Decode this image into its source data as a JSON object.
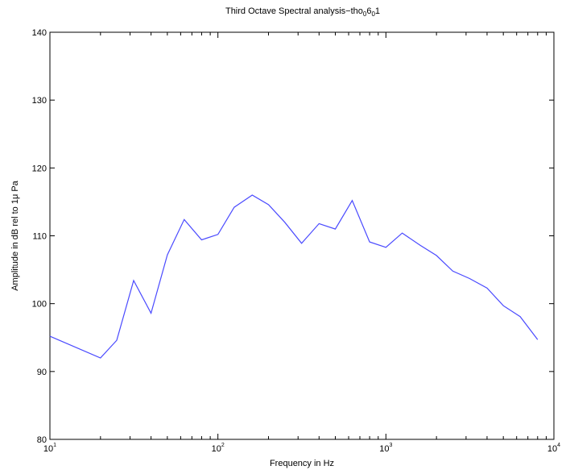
{
  "chart_data": {
    "type": "line",
    "title_parts": [
      {
        "text": "Third Octave Spectral analysis−tho",
        "sub": false
      },
      {
        "text": "0",
        "sub": true
      },
      {
        "text": "6",
        "sub": false
      },
      {
        "text": "0",
        "sub": true
      },
      {
        "text": "1",
        "sub": false
      }
    ],
    "xlabel": "Frequency in Hz",
    "ylabel": "Amplitude in dB rel to 1μ Pa",
    "xscale": "log",
    "xlim": [
      10,
      10000
    ],
    "ylim": [
      80,
      140
    ],
    "yticks": [
      80,
      90,
      100,
      110,
      120,
      130,
      140
    ],
    "xticks": [
      {
        "value": 10,
        "base": "10",
        "exp": "1"
      },
      {
        "value": 100,
        "base": "10",
        "exp": "2"
      },
      {
        "value": 1000,
        "base": "10",
        "exp": "3"
      },
      {
        "value": 10000,
        "base": "10",
        "exp": "4"
      }
    ],
    "grid": false,
    "line_color": "#4a4aff",
    "series": [
      {
        "x": [
          10,
          20,
          25,
          31.5,
          40,
          50,
          63,
          80,
          100,
          125,
          160,
          200,
          250,
          315,
          400,
          500,
          630,
          800,
          1000,
          1250,
          1600,
          2000,
          2500,
          3150,
          4000,
          5000,
          6300,
          8000
        ],
        "y": [
          95.2,
          92.0,
          94.6,
          103.4,
          98.6,
          107.2,
          112.4,
          109.4,
          110.2,
          114.2,
          116.0,
          114.6,
          112.0,
          108.9,
          111.8,
          111.0,
          115.2,
          109.1,
          108.3,
          110.4,
          108.6,
          107.1,
          104.8,
          103.7,
          102.3,
          99.7,
          98.1,
          94.7
        ]
      }
    ]
  }
}
